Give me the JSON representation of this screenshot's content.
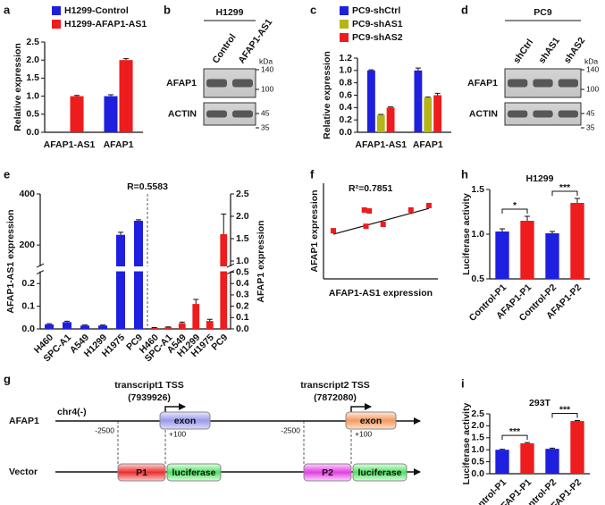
{
  "chart_data": [
    {
      "panel": "a",
      "type": "bar",
      "ylabel": "Relative expression",
      "categories": [
        "AFAP1-AS1",
        "AFAP1"
      ],
      "series": [
        {
          "name": "H1299-Control",
          "color": "#1f1fe0",
          "values": [
            null,
            1.0
          ],
          "errors": [
            null,
            0.04
          ]
        },
        {
          "name": "H1299-AFAP1-AS1",
          "color": "#ee1c1c",
          "values": [
            1.0,
            2.0
          ],
          "errors": [
            0.02,
            0.04
          ]
        }
      ],
      "ylim": [
        0,
        2.5
      ],
      "yticks": [
        {
          "value": 0,
          "label": "0.0"
        },
        0.5,
        {
          "value": 1,
          "label": "1.0"
        },
        1.5,
        {
          "value": 2,
          "label": "2.0"
        },
        2.5
      ]
    },
    {
      "panel": "c",
      "type": "bar",
      "ylabel": "Relative expression",
      "categories": [
        "AFAP1-AS1",
        "AFAP1"
      ],
      "series": [
        {
          "name": "PC9-shCtrl",
          "color": "#1f1fe0",
          "values": [
            1.0,
            1.0
          ],
          "errors": [
            0.01,
            0.04
          ]
        },
        {
          "name": "PC9-shAS1",
          "color": "#b5b51a",
          "values": [
            0.28,
            0.56
          ],
          "errors": [
            0.01,
            0.01
          ]
        },
        {
          "name": "PC9-shAS2",
          "color": "#ee1c1c",
          "values": [
            0.4,
            0.6
          ],
          "errors": [
            0.01,
            0.03
          ]
        }
      ],
      "ylim": [
        0,
        1.2
      ],
      "yticks": [
        {
          "value": 0,
          "label": "0.0"
        },
        0.2,
        0.4,
        0.6,
        0.8,
        {
          "value": 1,
          "label": "1.0"
        },
        1.2
      ]
    },
    {
      "panel": "e",
      "type": "brokenbar",
      "annotation": "R=0.5583",
      "ylabel": "AFAP1-AS1 expression",
      "y2label": "AFAP1 expression",
      "categories": [
        "H460",
        "SPC-A1",
        "A549",
        "H1299",
        "H1975",
        "PC9"
      ],
      "series": [
        {
          "color": "#1f1fe0",
          "values": [
            0.02,
            0.03,
            0.015,
            0.015,
            240,
            295
          ],
          "errors": [
            0.003,
            0.004,
            0.002,
            0.002,
            10,
            4
          ]
        },
        {
          "color": "#ee1c1c",
          "axis": "y2",
          "values": [
            0.01,
            0.015,
            0.05,
            0.22,
            0.07,
            1.6
          ],
          "errors": [
            0.002,
            0.003,
            0.01,
            0.04,
            0.015,
            0.45
          ]
        }
      ],
      "y_segments": [
        {
          "ylim": [
            0,
            0.25
          ],
          "yticks": [
            {
              "value": 0,
              "label": "0.0"
            },
            0.1,
            0.2
          ]
        },
        {
          "ylim": [
            120,
            400
          ],
          "yticks": [
            200,
            400
          ]
        }
      ],
      "y2_segments": [
        {
          "ylim": [
            0,
            0.5
          ],
          "yticks": [
            {
              "value": 0,
              "label": "0.0"
            },
            0.1,
            0.2,
            0.3,
            0.4,
            0.5
          ]
        },
        {
          "ylim": [
            0.9,
            2.5
          ],
          "yticks": [
            {
              "value": 1,
              "label": "1.0"
            },
            1.5,
            {
              "value": 2,
              "label": "2.0"
            },
            2.5
          ]
        }
      ]
    },
    {
      "panel": "f",
      "type": "scatter",
      "annotation": "R²=0.7851",
      "xlabel": "AFAP1-AS1 expression",
      "ylabel": "AFAP1 expression",
      "x": [
        12,
        50,
        56,
        52,
        73,
        107,
        129
      ],
      "values": [
        1.51,
        2.16,
        2.13,
        1.65,
        1.71,
        2.16,
        2.3
      ],
      "color": "#ee1c1c",
      "xlim": [
        0,
        140
      ],
      "ylim": [
        0,
        3
      ],
      "fit": {
        "x": [
          12,
          129
        ],
        "y": [
          1.4,
          2.21
        ]
      }
    },
    {
      "panel": "h",
      "type": "bar",
      "title": "H1299",
      "ylabel": "Luciferase activity",
      "categories": [
        "Control-P1",
        "AFAP1-P1",
        "Control-P2",
        "AFAP1-P2"
      ],
      "series": [
        {
          "colors": [
            "#1f1fe0",
            "#ee1c1c",
            "#1f1fe0",
            "#ee1c1c"
          ],
          "values": [
            1.03,
            1.15,
            1.01,
            1.35
          ],
          "errors": [
            0.03,
            0.05,
            0.02,
            0.05
          ]
        }
      ],
      "ylim": [
        0.5,
        1.5
      ],
      "yticks": [
        0.5,
        {
          "value": 1,
          "label": "1.0"
        },
        1.5
      ],
      "significance": [
        {
          "from": 0,
          "to": 1,
          "label": "*"
        },
        {
          "from": 2,
          "to": 3,
          "label": "***"
        }
      ]
    },
    {
      "panel": "i",
      "type": "bar",
      "title": "293T",
      "ylabel": "Luciferase activity",
      "categories": [
        "Control-P1",
        "AFAP1-P1",
        "Control-P2",
        "AFAP1-P2"
      ],
      "series": [
        {
          "colors": [
            "#1f1fe0",
            "#ee1c1c",
            "#1f1fe0",
            "#ee1c1c"
          ],
          "values": [
            1.0,
            1.27,
            1.04,
            2.2
          ],
          "errors": [
            0.02,
            0.03,
            0.03,
            0.02
          ]
        }
      ],
      "ylim": [
        0,
        2.5
      ],
      "yticks": [
        {
          "value": 0,
          "label": "0.0"
        },
        0.5,
        {
          "value": 1,
          "label": "1.0"
        },
        1.5,
        {
          "value": 2,
          "label": "2.0"
        },
        2.5
      ],
      "significance": [
        {
          "from": 0,
          "to": 1,
          "label": "***"
        },
        {
          "from": 2,
          "to": 3,
          "label": "***"
        }
      ]
    }
  ],
  "blots": [
    {
      "panel": "b",
      "title": "H1299",
      "lanes": [
        "Control",
        "AFAP1-AS1"
      ],
      "rows": [
        "AFAP1",
        "ACTIN"
      ],
      "unit": "kDa",
      "markers": [
        140,
        100,
        45,
        35
      ]
    },
    {
      "panel": "d",
      "title": "PC9",
      "lanes": [
        "shCtrl",
        "shAS1",
        "shAS2"
      ],
      "rows": [
        "AFAP1",
        "ACTIN"
      ],
      "unit": "kDa",
      "markers": [
        140,
        100,
        45,
        35
      ]
    }
  ],
  "diagram": {
    "panel": "g",
    "gene": "AFAP1",
    "chromosome": "chr4(-)",
    "vector": "Vector",
    "transcripts": [
      {
        "tss": "transcript1 TSS",
        "position": "(7939926)",
        "exon": "exon",
        "start": "-2500",
        "end": "+100",
        "promoter": "P1",
        "reporter": "luciferase"
      },
      {
        "tss": "transcript2 TSS",
        "position": "(7872080)",
        "exon": "exon",
        "start": "-2500",
        "end": "+100",
        "promoter": "P2",
        "reporter": "luciferase"
      }
    ]
  }
}
